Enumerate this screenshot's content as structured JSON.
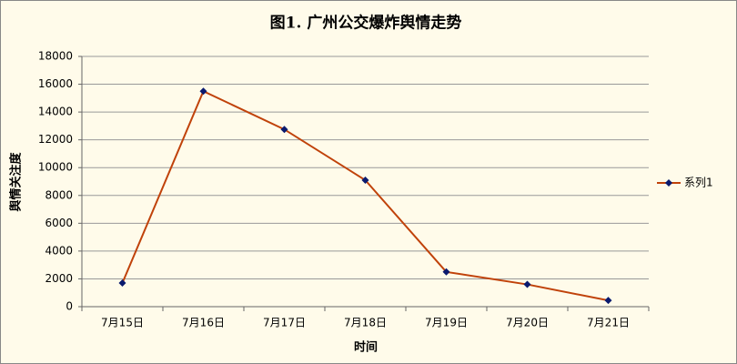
{
  "chart_data": {
    "type": "line",
    "title": "图1. 广州公交爆炸舆情走势",
    "x_label": "时间",
    "y_label": "舆情关注度",
    "categories": [
      "7月15日",
      "7月16日",
      "7月17日",
      "7月18日",
      "7月19日",
      "7月20日",
      "7月21日"
    ],
    "series": [
      {
        "name": "系列1",
        "color": "#c0420a",
        "marker_color": "#0a1a6e",
        "values": [
          1700,
          15500,
          12750,
          9100,
          2500,
          1600,
          450
        ]
      }
    ],
    "ylim": [
      0,
      18000
    ],
    "yticks": [
      0,
      2000,
      4000,
      6000,
      8000,
      10000,
      12000,
      14000,
      16000,
      18000
    ],
    "grid": true,
    "legend": "right"
  }
}
